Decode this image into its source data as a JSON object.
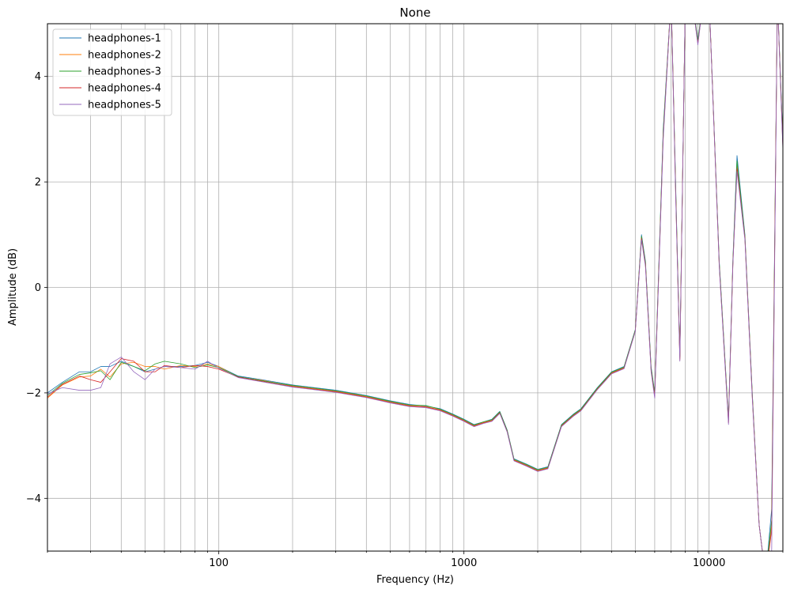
{
  "chart_data": {
    "type": "line",
    "title": "None",
    "xlabel": "Frequency (Hz)",
    "ylabel": "Amplitude (dB)",
    "xscale": "log",
    "xlim": [
      20,
      20000
    ],
    "ylim": [
      -5,
      5
    ],
    "xticks": [
      {
        "value": 100,
        "label": "100"
      },
      {
        "value": 1000,
        "label": "1000"
      },
      {
        "value": 10000,
        "label": "10000"
      }
    ],
    "yticks": [
      {
        "value": -4,
        "label": "−4"
      },
      {
        "value": -2,
        "label": "−2"
      },
      {
        "value": 0,
        "label": "0"
      },
      {
        "value": 2,
        "label": "2"
      },
      {
        "value": 4,
        "label": "4"
      }
    ],
    "grid": true,
    "legend_position": "top-left",
    "series": [
      {
        "name": "headphones-1",
        "color": "#1f77b4",
        "x": [
          20,
          23,
          27,
          30,
          33,
          36,
          40,
          45,
          50,
          55,
          60,
          70,
          80,
          90,
          100,
          120,
          150,
          200,
          300,
          400,
          500,
          600,
          700,
          800,
          900,
          1000,
          1100,
          1200,
          1300,
          1400,
          1500,
          1600,
          1800,
          2000,
          2200,
          2500,
          2800,
          3000,
          3500,
          4000,
          4500,
          5000,
          5300,
          5500,
          5800,
          6000,
          6500,
          7000,
          7300,
          7600,
          8000,
          8500,
          9000,
          9500,
          10000,
          11000,
          12000,
          12500,
          13000,
          14000,
          15000,
          16000,
          17000,
          18000,
          19000,
          20000
        ],
        "y": [
          -2.0,
          -1.8,
          -1.6,
          -1.6,
          -1.5,
          -1.5,
          -1.4,
          -1.5,
          -1.6,
          -1.55,
          -1.5,
          -1.5,
          -1.48,
          -1.42,
          -1.5,
          -1.68,
          -1.75,
          -1.85,
          -1.95,
          -2.05,
          -2.15,
          -2.22,
          -2.25,
          -2.3,
          -2.4,
          -2.5,
          -2.6,
          -2.55,
          -2.5,
          -2.35,
          -2.7,
          -3.25,
          -3.35,
          -3.45,
          -3.4,
          -2.6,
          -2.4,
          -2.3,
          -1.9,
          -1.6,
          -1.5,
          -0.8,
          1.0,
          0.5,
          -1.5,
          -2.0,
          3.0,
          5.5,
          2.0,
          -1.3,
          5.5,
          5.5,
          4.7,
          5.5,
          5.5,
          0.5,
          -2.5,
          0.5,
          2.5,
          1.0,
          -2.0,
          -4.5,
          -5.5,
          -4.2,
          5.5,
          2.8
        ]
      },
      {
        "name": "headphones-2",
        "color": "#ff7f0e",
        "x": [
          20,
          23,
          27,
          30,
          33,
          36,
          40,
          45,
          50,
          55,
          60,
          70,
          80,
          90,
          100,
          120,
          150,
          200,
          300,
          400,
          500,
          600,
          700,
          800,
          900,
          1000,
          1100,
          1200,
          1300,
          1400,
          1500,
          1600,
          1800,
          2000,
          2200,
          2500,
          2800,
          3000,
          3500,
          4000,
          4500,
          5000,
          5300,
          5500,
          5800,
          6000,
          6500,
          7000,
          7300,
          7600,
          8000,
          8500,
          9000,
          9500,
          10000,
          11000,
          12000,
          12500,
          13000,
          14000,
          15000,
          16000,
          17000,
          18000,
          19000,
          20000
        ],
        "y": [
          -2.1,
          -1.85,
          -1.7,
          -1.68,
          -1.55,
          -1.7,
          -1.45,
          -1.42,
          -1.5,
          -1.5,
          -1.55,
          -1.48,
          -1.5,
          -1.45,
          -1.5,
          -1.7,
          -1.76,
          -1.87,
          -1.97,
          -2.07,
          -2.17,
          -2.24,
          -2.26,
          -2.32,
          -2.42,
          -2.52,
          -2.62,
          -2.56,
          -2.52,
          -2.37,
          -2.72,
          -3.27,
          -3.37,
          -3.47,
          -3.42,
          -2.62,
          -2.42,
          -2.32,
          -1.92,
          -1.62,
          -1.52,
          -0.82,
          0.95,
          0.45,
          -1.55,
          -2.05,
          2.9,
          5.5,
          1.9,
          -1.35,
          5.5,
          5.5,
          4.65,
          5.5,
          5.5,
          0.45,
          -2.55,
          0.45,
          2.3,
          0.95,
          -2.05,
          -4.5,
          -5.5,
          -4.5,
          5.5,
          2.7
        ]
      },
      {
        "name": "headphones-3",
        "color": "#2ca02c",
        "x": [
          20,
          23,
          27,
          30,
          33,
          36,
          40,
          45,
          50,
          55,
          60,
          70,
          80,
          90,
          100,
          120,
          150,
          200,
          300,
          400,
          500,
          600,
          700,
          800,
          900,
          1000,
          1100,
          1200,
          1300,
          1400,
          1500,
          1600,
          1800,
          2000,
          2200,
          2500,
          2800,
          3000,
          3500,
          4000,
          4500,
          5000,
          5300,
          5500,
          5800,
          6000,
          6500,
          7000,
          7300,
          7600,
          8000,
          8500,
          9000,
          9500,
          10000,
          11000,
          12000,
          12500,
          13000,
          14000,
          15000,
          16000,
          17000,
          18000,
          19000,
          20000
        ],
        "y": [
          -2.05,
          -1.82,
          -1.65,
          -1.62,
          -1.58,
          -1.75,
          -1.42,
          -1.5,
          -1.58,
          -1.45,
          -1.4,
          -1.45,
          -1.52,
          -1.47,
          -1.52,
          -1.69,
          -1.77,
          -1.86,
          -1.96,
          -2.06,
          -2.16,
          -2.23,
          -2.24,
          -2.31,
          -2.41,
          -2.51,
          -2.61,
          -2.55,
          -2.51,
          -2.36,
          -2.71,
          -3.26,
          -3.36,
          -3.46,
          -3.41,
          -2.61,
          -2.41,
          -2.31,
          -1.91,
          -1.61,
          -1.51,
          -0.81,
          0.97,
          0.47,
          -1.52,
          -2.02,
          2.95,
          5.5,
          1.95,
          -1.32,
          5.5,
          5.5,
          4.68,
          5.5,
          5.5,
          0.48,
          -2.52,
          0.48,
          2.4,
          0.97,
          -2.02,
          -4.5,
          -5.5,
          -4.4,
          5.5,
          2.75
        ]
      },
      {
        "name": "headphones-4",
        "color": "#d62728",
        "x": [
          20,
          23,
          27,
          30,
          33,
          36,
          40,
          45,
          50,
          55,
          60,
          70,
          80,
          90,
          100,
          120,
          150,
          200,
          300,
          400,
          500,
          600,
          700,
          800,
          900,
          1000,
          1100,
          1200,
          1300,
          1400,
          1500,
          1600,
          1800,
          2000,
          2200,
          2500,
          2800,
          3000,
          3500,
          4000,
          4500,
          5000,
          5300,
          5500,
          5800,
          6000,
          6500,
          7000,
          7300,
          7600,
          8000,
          8500,
          9000,
          9500,
          10000,
          11000,
          12000,
          12500,
          13000,
          14000,
          15000,
          16000,
          17000,
          18000,
          19000,
          20000
        ],
        "y": [
          -2.08,
          -1.84,
          -1.68,
          -1.75,
          -1.8,
          -1.6,
          -1.35,
          -1.4,
          -1.6,
          -1.6,
          -1.48,
          -1.52,
          -1.48,
          -1.5,
          -1.55,
          -1.7,
          -1.78,
          -1.88,
          -1.98,
          -2.08,
          -2.18,
          -2.25,
          -2.27,
          -2.33,
          -2.43,
          -2.53,
          -2.63,
          -2.57,
          -2.53,
          -2.38,
          -2.73,
          -3.28,
          -3.38,
          -3.48,
          -3.43,
          -2.63,
          -2.43,
          -2.33,
          -1.93,
          -1.63,
          -1.53,
          -0.83,
          0.93,
          0.43,
          -1.57,
          -2.07,
          2.85,
          5.5,
          1.85,
          -1.38,
          5.5,
          5.5,
          4.62,
          5.5,
          5.5,
          0.42,
          -2.57,
          0.42,
          2.25,
          0.93,
          -2.07,
          -4.5,
          -5.5,
          -4.6,
          5.5,
          2.65
        ]
      },
      {
        "name": "headphones-5",
        "color": "#9467bd",
        "x": [
          20,
          23,
          27,
          30,
          33,
          36,
          40,
          45,
          50,
          55,
          60,
          70,
          80,
          90,
          100,
          120,
          150,
          200,
          300,
          400,
          500,
          600,
          700,
          800,
          900,
          1000,
          1100,
          1200,
          1300,
          1400,
          1500,
          1600,
          1800,
          2000,
          2200,
          2500,
          2800,
          3000,
          3500,
          4000,
          4500,
          5000,
          5300,
          5500,
          5800,
          6000,
          6500,
          7000,
          7300,
          7600,
          8000,
          8500,
          9000,
          9500,
          10000,
          11000,
          12000,
          12500,
          13000,
          14000,
          15000,
          16000,
          17000,
          18000,
          19000,
          20000
        ],
        "y": [
          -2.02,
          -1.9,
          -1.95,
          -1.95,
          -1.9,
          -1.45,
          -1.32,
          -1.6,
          -1.75,
          -1.55,
          -1.5,
          -1.52,
          -1.55,
          -1.4,
          -1.53,
          -1.71,
          -1.79,
          -1.89,
          -1.99,
          -2.09,
          -2.19,
          -2.26,
          -2.28,
          -2.34,
          -2.44,
          -2.54,
          -2.64,
          -2.58,
          -2.54,
          -2.39,
          -2.74,
          -3.29,
          -3.39,
          -3.49,
          -3.44,
          -2.64,
          -2.44,
          -2.34,
          -1.94,
          -1.64,
          -1.54,
          -0.84,
          0.9,
          0.4,
          -1.6,
          -2.1,
          2.8,
          5.5,
          1.8,
          -1.4,
          5.5,
          5.5,
          4.6,
          5.5,
          5.5,
          0.4,
          -2.6,
          0.4,
          2.2,
          0.9,
          -2.1,
          -4.5,
          -5.5,
          -5.0,
          5.5,
          2.6
        ]
      }
    ]
  }
}
